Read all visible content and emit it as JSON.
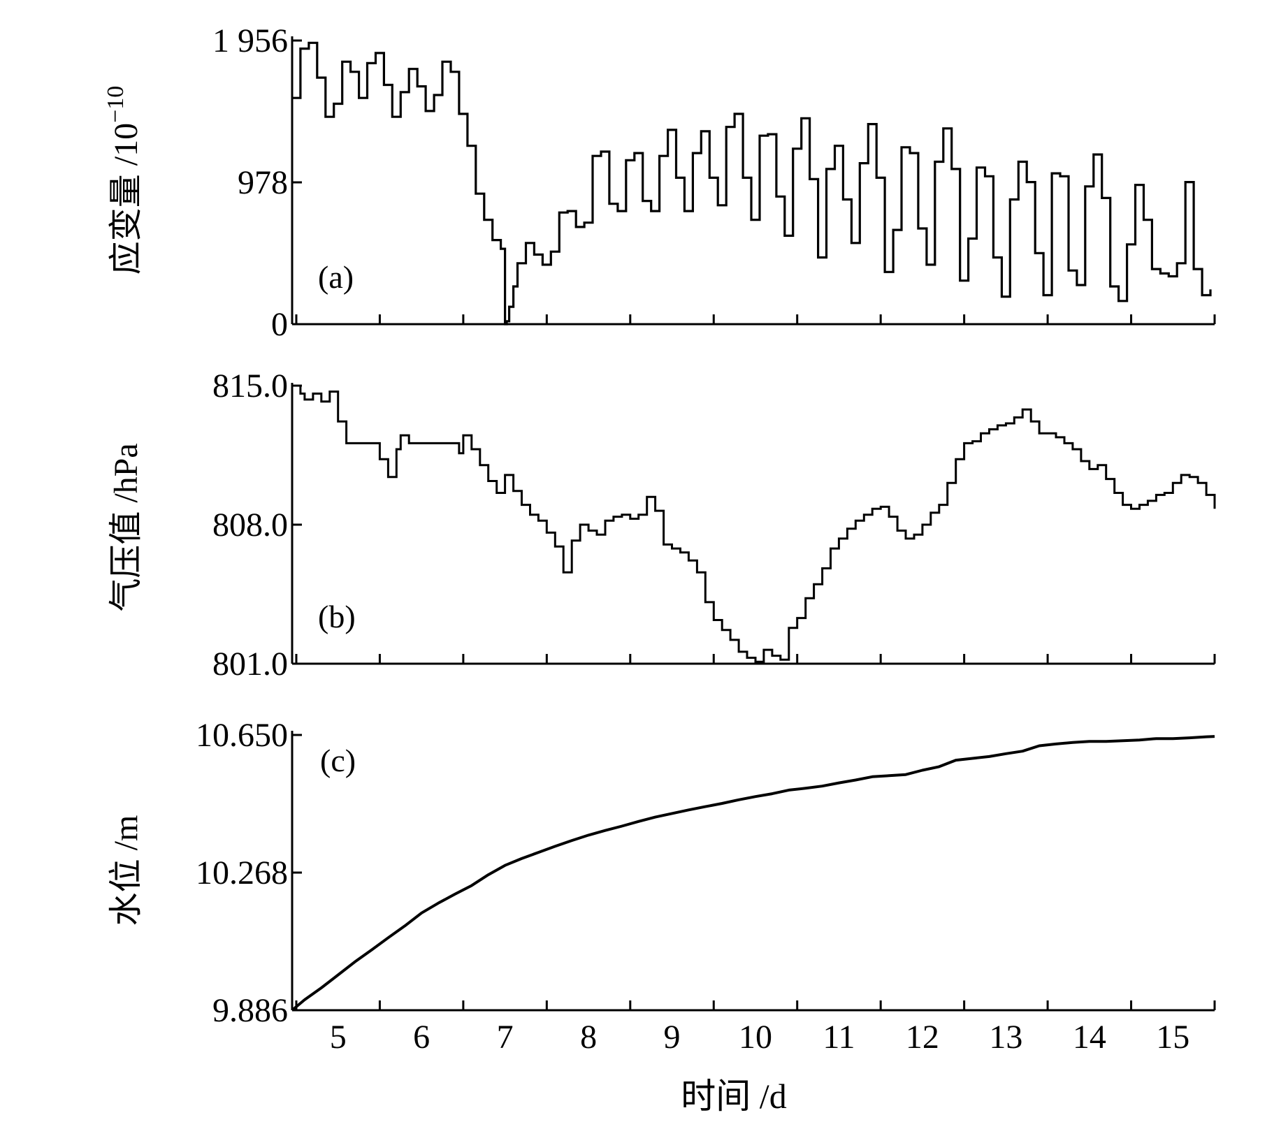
{
  "figure": {
    "x_axis_title": "时间 /d",
    "x_ticks": [
      5,
      6,
      7,
      8,
      9,
      10,
      11,
      12,
      13,
      14,
      15
    ],
    "x_range": [
      4.45,
      15.5
    ],
    "line_color": "#000000"
  },
  "chart_data": [
    {
      "type": "line",
      "panel_label": "(a)",
      "ylabel": "应变量 /10",
      "ylabel_superscript": "−10",
      "y_ticks": [
        0,
        978,
        1956
      ],
      "y_tick_labels": [
        "0",
        "978",
        "1 956"
      ],
      "ylim": [
        0,
        1956
      ],
      "series": [
        {
          "x": [
            4.45,
            4.55,
            4.65,
            4.75,
            4.85,
            4.95,
            5.05,
            5.15,
            5.25,
            5.35,
            5.45,
            5.55,
            5.65,
            5.75,
            5.85,
            5.95,
            6.05,
            6.15,
            6.25,
            6.35,
            6.45,
            6.55,
            6.65,
            6.75,
            6.85,
            6.95,
            7.0,
            7.02,
            7.05,
            7.1,
            7.15,
            7.25,
            7.35,
            7.45,
            7.55,
            7.65,
            7.75,
            7.85,
            7.95,
            8.05,
            8.15,
            8.25,
            8.35,
            8.45,
            8.55,
            8.65,
            8.75,
            8.85,
            8.95,
            9.05,
            9.15,
            9.25,
            9.35,
            9.45,
            9.55,
            9.65,
            9.75,
            9.85,
            9.95,
            10.05,
            10.15,
            10.25,
            10.35,
            10.45,
            10.55,
            10.65,
            10.75,
            10.85,
            10.95,
            11.05,
            11.15,
            11.25,
            11.35,
            11.45,
            11.55,
            11.65,
            11.75,
            11.85,
            11.95,
            12.05,
            12.15,
            12.25,
            12.35,
            12.45,
            12.55,
            12.65,
            12.75,
            12.85,
            12.95,
            13.05,
            13.15,
            13.25,
            13.35,
            13.45,
            13.55,
            13.65,
            13.75,
            13.85,
            13.95,
            14.05,
            14.15,
            14.25,
            14.35,
            14.45,
            14.55,
            14.65,
            14.75,
            14.85,
            14.95,
            15.05,
            15.15,
            15.25,
            15.35,
            15.45
          ],
          "y": [
            1560,
            1900,
            1940,
            1700,
            1430,
            1520,
            1810,
            1740,
            1560,
            1800,
            1870,
            1650,
            1430,
            1600,
            1760,
            1640,
            1470,
            1580,
            1810,
            1740,
            1450,
            1230,
            900,
            720,
            580,
            520,
            0,
            20,
            120,
            260,
            420,
            560,
            480,
            410,
            500,
            770,
            780,
            670,
            700,
            1160,
            1190,
            830,
            780,
            1130,
            1180,
            850,
            780,
            1160,
            1340,
            1010,
            780,
            1180,
            1330,
            1010,
            820,
            1360,
            1450,
            1010,
            720,
            1300,
            1310,
            880,
            610,
            1210,
            1420,
            1000,
            460,
            1070,
            1230,
            860,
            560,
            1110,
            1380,
            1010,
            360,
            650,
            1220,
            1180,
            660,
            410,
            1120,
            1350,
            1070,
            300,
            590,
            1080,
            1020,
            460,
            190,
            860,
            1120,
            980,
            490,
            200,
            1040,
            1020,
            370,
            270,
            950,
            1170,
            870,
            260,
            160,
            550,
            960,
            720,
            380,
            350,
            330,
            420,
            980,
            380,
            200,
            240
          ]
        }
      ]
    },
    {
      "type": "line",
      "panel_label": "(b)",
      "ylabel": "气压值 /hPa",
      "y_ticks": [
        801.0,
        808.0,
        815.0
      ],
      "y_tick_labels": [
        "801.0",
        "808.0",
        "815.0"
      ],
      "ylim": [
        801.0,
        815.0
      ],
      "series": [
        {
          "x": [
            4.45,
            4.55,
            4.6,
            4.7,
            4.8,
            4.9,
            5.0,
            5.1,
            5.2,
            5.3,
            5.4,
            5.5,
            5.6,
            5.7,
            5.75,
            5.85,
            5.95,
            6.05,
            6.15,
            6.25,
            6.35,
            6.45,
            6.5,
            6.6,
            6.7,
            6.8,
            6.9,
            7.0,
            7.1,
            7.2,
            7.3,
            7.4,
            7.5,
            7.6,
            7.7,
            7.8,
            7.9,
            8.0,
            8.1,
            8.2,
            8.3,
            8.4,
            8.5,
            8.6,
            8.7,
            8.8,
            8.9,
            9.0,
            9.1,
            9.2,
            9.3,
            9.4,
            9.5,
            9.6,
            9.7,
            9.8,
            9.9,
            10.0,
            10.1,
            10.2,
            10.3,
            10.4,
            10.5,
            10.6,
            10.7,
            10.8,
            10.9,
            11.0,
            11.1,
            11.2,
            11.3,
            11.4,
            11.5,
            11.6,
            11.7,
            11.8,
            11.9,
            12.0,
            12.1,
            12.2,
            12.3,
            12.4,
            12.5,
            12.6,
            12.7,
            12.8,
            12.9,
            13.0,
            13.1,
            13.2,
            13.3,
            13.4,
            13.5,
            13.6,
            13.7,
            13.8,
            13.9,
            14.0,
            14.1,
            14.2,
            14.3,
            14.4,
            14.5,
            14.6,
            14.7,
            14.8,
            14.9,
            15.0,
            15.1,
            15.2,
            15.3,
            15.4,
            15.5
          ],
          "y": [
            815,
            814.6,
            814.3,
            814.6,
            814.2,
            814.7,
            813.2,
            812.1,
            812.1,
            812.1,
            812.1,
            811.3,
            810.4,
            811.8,
            812.5,
            812.1,
            812.1,
            812.1,
            812.1,
            812.1,
            812.1,
            811.6,
            812.5,
            811.8,
            811.0,
            810.2,
            809.6,
            810.5,
            809.7,
            809.0,
            808.5,
            808.2,
            807.6,
            806.9,
            805.6,
            807.2,
            808.0,
            807.7,
            807.5,
            808.2,
            808.4,
            808.5,
            808.3,
            808.5,
            809.4,
            808.7,
            807.0,
            806.8,
            806.6,
            806.2,
            805.6,
            804.1,
            803.2,
            802.7,
            802.2,
            801.6,
            801.3,
            801.1,
            801.7,
            801.4,
            801.2,
            802.8,
            803.3,
            804.3,
            805.0,
            805.8,
            806.8,
            807.3,
            807.8,
            808.2,
            808.5,
            808.8,
            808.9,
            808.4,
            807.7,
            807.3,
            807.5,
            808.0,
            808.6,
            809.0,
            810.1,
            811.3,
            812.1,
            812.2,
            812.6,
            812.8,
            813.0,
            813.1,
            813.4,
            813.8,
            813.2,
            812.6,
            812.6,
            812.4,
            812.1,
            811.8,
            811.2,
            810.8,
            811.0,
            810.3,
            809.6,
            809.0,
            808.8,
            809.0,
            809.2,
            809.5,
            809.6,
            810.1,
            810.5,
            810.4,
            810.1,
            809.5,
            808.8
          ]
        }
      ]
    },
    {
      "type": "line",
      "panel_label": "(c)",
      "ylabel": "水位 /m",
      "y_ticks": [
        9.886,
        10.268,
        10.65
      ],
      "y_tick_labels": [
        "9.886",
        "10.268",
        "10.650"
      ],
      "ylim": [
        9.886,
        10.65
      ],
      "series": [
        {
          "x": [
            4.45,
            4.6,
            4.8,
            5.0,
            5.2,
            5.4,
            5.6,
            5.8,
            6.0,
            6.2,
            6.4,
            6.6,
            6.8,
            7.0,
            7.2,
            7.4,
            7.6,
            7.8,
            8.0,
            8.2,
            8.4,
            8.6,
            8.8,
            9.0,
            9.2,
            9.4,
            9.6,
            9.8,
            10.0,
            10.2,
            10.4,
            10.6,
            10.8,
            11.0,
            11.2,
            11.4,
            11.6,
            11.8,
            12.0,
            12.2,
            12.4,
            12.6,
            12.8,
            13.0,
            13.2,
            13.4,
            13.6,
            13.8,
            14.0,
            14.2,
            14.4,
            14.6,
            14.8,
            15.0,
            15.2,
            15.4,
            15.5
          ],
          "y": [
            9.886,
            9.915,
            9.948,
            9.984,
            10.02,
            10.053,
            10.087,
            10.12,
            10.156,
            10.183,
            10.208,
            10.232,
            10.262,
            10.288,
            10.307,
            10.324,
            10.341,
            10.357,
            10.372,
            10.385,
            10.397,
            10.41,
            10.422,
            10.432,
            10.442,
            10.451,
            10.46,
            10.47,
            10.479,
            10.487,
            10.497,
            10.502,
            10.508,
            10.517,
            10.525,
            10.534,
            10.537,
            10.54,
            10.552,
            10.562,
            10.58,
            10.585,
            10.59,
            10.598,
            10.605,
            10.62,
            10.625,
            10.629,
            10.632,
            10.632,
            10.634,
            10.636,
            10.64,
            10.64,
            10.642,
            10.645,
            10.646
          ]
        }
      ]
    }
  ]
}
